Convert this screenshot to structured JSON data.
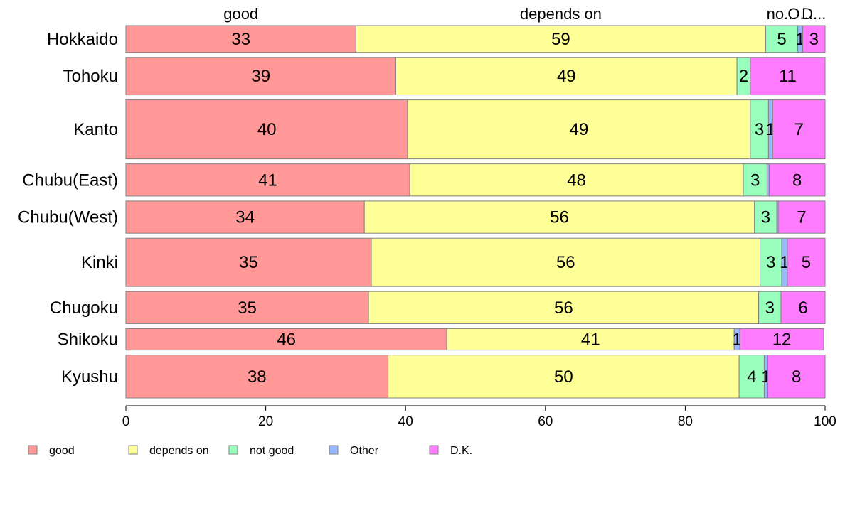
{
  "chart_data": {
    "type": "bar",
    "orientation": "horizontal",
    "stacked": true,
    "categories": [
      "Hokkaido",
      "Tohoku",
      "Kanto",
      "Chubu(East)",
      "Chubu(West)",
      "Kinki",
      "Chugoku",
      "Shikoku",
      "Kyushu"
    ],
    "row_weights": [
      0.5,
      0.7,
      1.1,
      0.6,
      0.6,
      0.9,
      0.6,
      0.4,
      0.8
    ],
    "series": [
      {
        "name": "good",
        "color": "#FF9896",
        "values": [
          32.9,
          38.6,
          40.3,
          40.6,
          34.1,
          35.1,
          34.7,
          45.9,
          37.5
        ]
      },
      {
        "name": "depends on",
        "color": "#FFFF98",
        "values": [
          58.6,
          48.8,
          49.0,
          47.7,
          55.8,
          55.6,
          55.8,
          41.1,
          50.2
        ]
      },
      {
        "name": "not good",
        "color": "#98FFBC",
        "values": [
          4.6,
          1.9,
          2.6,
          3.4,
          3.2,
          3.1,
          3.2,
          0.0,
          3.6
        ]
      },
      {
        "name": "Other",
        "color": "#98B8FF",
        "values": [
          0.7,
          0.0,
          0.6,
          0.3,
          0.2,
          0.8,
          0.0,
          0.8,
          0.5
        ]
      },
      {
        "name": "D.K.",
        "color": "#FF7CFF",
        "values": [
          3.2,
          10.7,
          7.5,
          8.0,
          6.7,
          5.4,
          6.3,
          12.0,
          8.2
        ]
      }
    ],
    "segment_labels": [
      [
        "33",
        "59",
        "5",
        "1",
        "3"
      ],
      [
        "39",
        "49",
        "2",
        "",
        "11"
      ],
      [
        "40",
        "49",
        "3",
        "1",
        "7"
      ],
      [
        "41",
        "48",
        "3",
        "",
        "8"
      ],
      [
        "34",
        "56",
        "3",
        "",
        "7"
      ],
      [
        "35",
        "56",
        "3",
        "1",
        "5"
      ],
      [
        "35",
        "56",
        "3",
        "",
        "6"
      ],
      [
        "46",
        "41",
        "",
        "1",
        "12"
      ],
      [
        "38",
        "50",
        "4",
        "1",
        "8"
      ]
    ],
    "top_labels": [
      "good",
      "depends on",
      "no...",
      "O...",
      "D..."
    ],
    "xlim": [
      0,
      100
    ],
    "xticks": [
      "0",
      "20",
      "40",
      "60",
      "80",
      "100"
    ],
    "grid": false,
    "legend": {
      "placement": "bottom",
      "labels": [
        "good",
        "depends on",
        "not good",
        "Other",
        "D.K."
      ]
    }
  }
}
